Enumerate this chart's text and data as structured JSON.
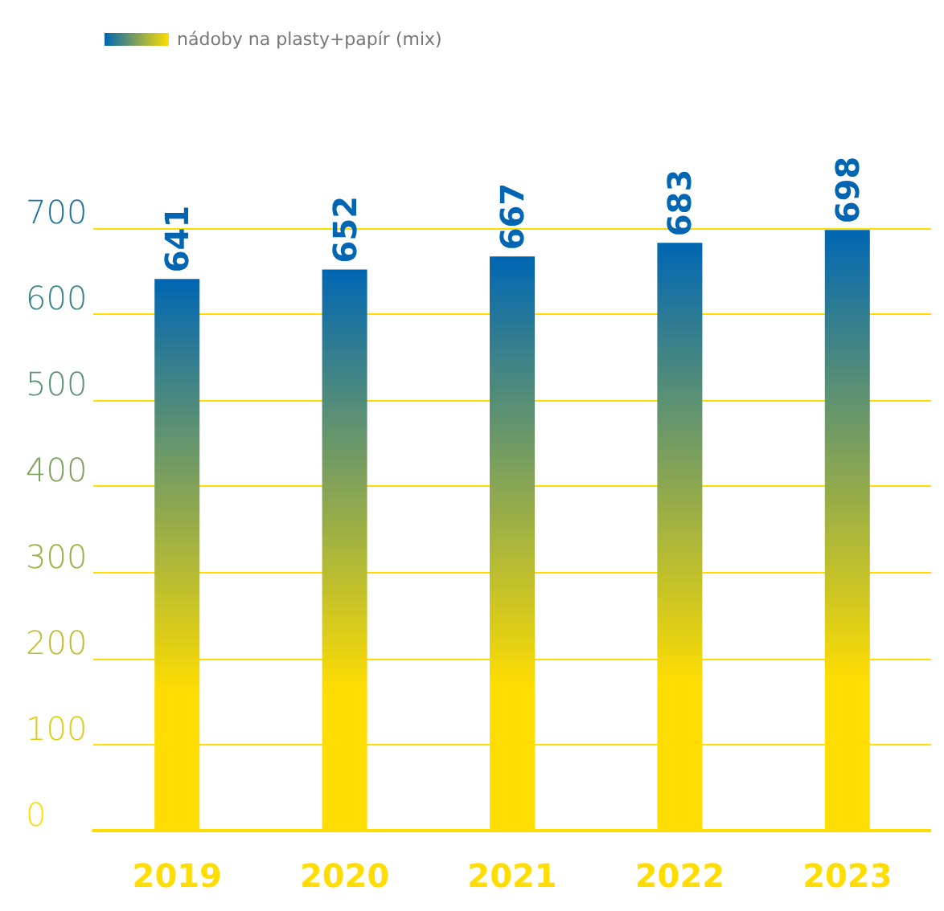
{
  "chart_data": {
    "type": "bar",
    "categories": [
      "2019",
      "2020",
      "2021",
      "2022",
      "2023"
    ],
    "series": [
      {
        "name": "nádoby na plasty+papír (mix)",
        "color": "#0066b3",
        "values": [
          641,
          652,
          667,
          683,
          698
        ]
      }
    ],
    "ylim": [
      0,
      700
    ],
    "yticks": [
      0,
      100,
      200,
      300,
      400,
      500,
      600,
      700
    ],
    "grid": "y",
    "legend": "top left",
    "data_labels": true
  }
}
